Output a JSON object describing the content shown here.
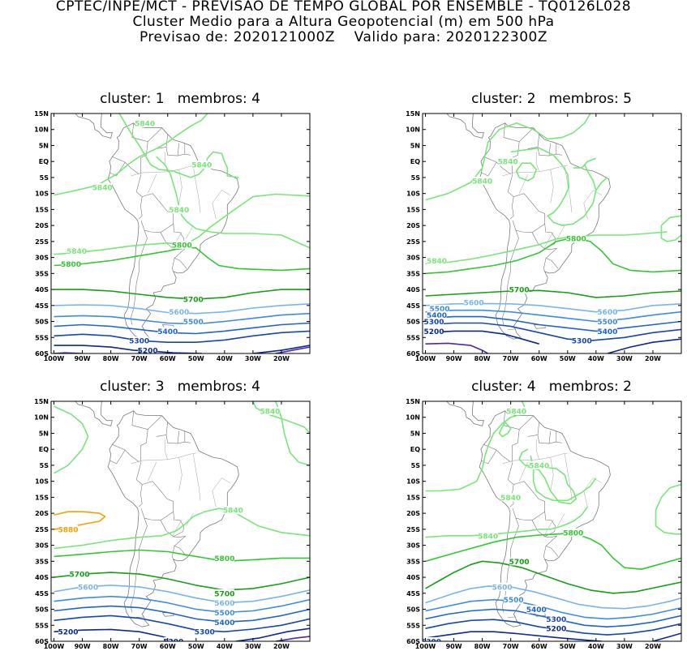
{
  "header": {
    "line1": "CPTEC/INPE/MCT - PREVISAO DE TEMPO GLOBAL POR ENSEMBLE - TQ0126L028",
    "line2": "Cluster Medio para a Altura Geopotencial (m) em 500 hPa",
    "line3": "Previsao de: 2020121000Z    Valido para: 2020122300Z"
  },
  "axes": {
    "lat_labels": [
      "15N",
      "10N",
      "5N",
      "EQ",
      "5S",
      "10S",
      "15S",
      "20S",
      "25S",
      "30S",
      "35S",
      "40S",
      "45S",
      "50S",
      "55S",
      "60S"
    ],
    "lon_labels": [
      "100W",
      "90W",
      "80W",
      "70W",
      "60W",
      "50W",
      "40W",
      "30W",
      "20W"
    ]
  },
  "colors": {
    "c5880": "#f5a000",
    "c5840": "#78e678",
    "c5800": "#32c832",
    "c5700": "#14a014",
    "c5600": "#78b4f0",
    "c5500": "#3c8ce6",
    "c5400": "#1e64d2",
    "c5300": "#1446b4",
    "c5200": "#0a2896",
    "c5100": "#5028a0",
    "coast": "#7a7a7a"
  },
  "panels": [
    {
      "title": "cluster: 1   membros: 4",
      "labels": [
        {
          "text": "5840",
          "lon": -68,
          "lat": 12,
          "c": "c5840"
        },
        {
          "text": "5840",
          "lon": -48,
          "lat": -1,
          "c": "c5840"
        },
        {
          "text": "5840",
          "lon": -83,
          "lat": -8,
          "c": "c5840"
        },
        {
          "text": "5840",
          "lon": -56,
          "lat": -15,
          "c": "c5840"
        },
        {
          "text": "5840",
          "lon": -92,
          "lat": -28,
          "c": "c5840"
        },
        {
          "text": "5800",
          "lon": -55,
          "lat": -26,
          "c": "c5800"
        },
        {
          "text": "5800",
          "lon": -94,
          "lat": -32,
          "c": "c5800"
        },
        {
          "text": "5700",
          "lon": -51,
          "lat": -43,
          "c": "c5700"
        },
        {
          "text": "5600",
          "lon": -56,
          "lat": -47,
          "c": "c5600"
        },
        {
          "text": "5500",
          "lon": -51,
          "lat": -50,
          "c": "c5500"
        },
        {
          "text": "5400",
          "lon": -60,
          "lat": -53,
          "c": "c5400"
        },
        {
          "text": "5300",
          "lon": -70,
          "lat": -56,
          "c": "c5300"
        },
        {
          "text": "5200",
          "lon": -67,
          "lat": -59,
          "c": "c5200"
        }
      ]
    },
    {
      "title": "cluster: 2   membros: 5",
      "labels": [
        {
          "text": "5840",
          "lon": -71,
          "lat": 0,
          "c": "c5840"
        },
        {
          "text": "5840",
          "lon": -80,
          "lat": -6,
          "c": "c5840"
        },
        {
          "text": "5800",
          "lon": -47,
          "lat": -24,
          "c": "c5800"
        },
        {
          "text": "5840",
          "lon": -96,
          "lat": -31,
          "c": "c5840"
        },
        {
          "text": "5700",
          "lon": -67,
          "lat": -40,
          "c": "c5700"
        },
        {
          "text": "5600",
          "lon": -83,
          "lat": -44,
          "c": "c5600"
        },
        {
          "text": "5600",
          "lon": -36,
          "lat": -47,
          "c": "c5600"
        },
        {
          "text": "5500",
          "lon": -95,
          "lat": -46,
          "c": "c5500"
        },
        {
          "text": "5500",
          "lon": -36,
          "lat": -50,
          "c": "c5500"
        },
        {
          "text": "5400",
          "lon": -96,
          "lat": -48,
          "c": "c5400"
        },
        {
          "text": "5400",
          "lon": -36,
          "lat": -53,
          "c": "c5400"
        },
        {
          "text": "5300",
          "lon": -97,
          "lat": -50,
          "c": "c5300"
        },
        {
          "text": "5300",
          "lon": -45,
          "lat": -56,
          "c": "c5300"
        },
        {
          "text": "5200",
          "lon": -97,
          "lat": -53,
          "c": "c5200"
        }
      ]
    },
    {
      "title": "cluster: 3   membros: 4",
      "labels": [
        {
          "text": "5840",
          "lon": -24,
          "lat": 12,
          "c": "c5840"
        },
        {
          "text": "5880",
          "lon": -95,
          "lat": -25,
          "c": "c5880"
        },
        {
          "text": "5840",
          "lon": -37,
          "lat": -19,
          "c": "c5840"
        },
        {
          "text": "5800",
          "lon": -40,
          "lat": -34,
          "c": "c5800"
        },
        {
          "text": "5700",
          "lon": -91,
          "lat": -39,
          "c": "c5700"
        },
        {
          "text": "5700",
          "lon": -40,
          "lat": -45,
          "c": "c5700"
        },
        {
          "text": "5600",
          "lon": -88,
          "lat": -43,
          "c": "c5600"
        },
        {
          "text": "5600",
          "lon": -40,
          "lat": -48,
          "c": "c5600"
        },
        {
          "text": "5500",
          "lon": -40,
          "lat": -51,
          "c": "c5500"
        },
        {
          "text": "5400",
          "lon": -40,
          "lat": -54,
          "c": "c5400"
        },
        {
          "text": "5300",
          "lon": -47,
          "lat": -57,
          "c": "c5300"
        },
        {
          "text": "5200",
          "lon": -95,
          "lat": -57,
          "c": "c5200"
        },
        {
          "text": "5200",
          "lon": -58,
          "lat": -60,
          "c": "c5200"
        }
      ]
    },
    {
      "title": "cluster: 4   membros: 2",
      "labels": [
        {
          "text": "5840",
          "lon": -68,
          "lat": 12,
          "c": "c5840"
        },
        {
          "text": "5840",
          "lon": -60,
          "lat": -5,
          "c": "c5840"
        },
        {
          "text": "5840",
          "lon": -70,
          "lat": -15,
          "c": "c5840"
        },
        {
          "text": "5840",
          "lon": -78,
          "lat": -27,
          "c": "c5840"
        },
        {
          "text": "5800",
          "lon": -48,
          "lat": -26,
          "c": "c5800"
        },
        {
          "text": "5700",
          "lon": -67,
          "lat": -35,
          "c": "c5700"
        },
        {
          "text": "5600",
          "lon": -73,
          "lat": -43,
          "c": "c5600"
        },
        {
          "text": "5500",
          "lon": -69,
          "lat": -47,
          "c": "c5500"
        },
        {
          "text": "5400",
          "lon": -61,
          "lat": -50,
          "c": "c5400"
        },
        {
          "text": "5300",
          "lon": -54,
          "lat": -53,
          "c": "c5300"
        },
        {
          "text": "5200",
          "lon": -54,
          "lat": -56,
          "c": "c5200"
        },
        {
          "text": "5300",
          "lon": -98,
          "lat": -60,
          "c": "c5300"
        }
      ]
    }
  ]
}
